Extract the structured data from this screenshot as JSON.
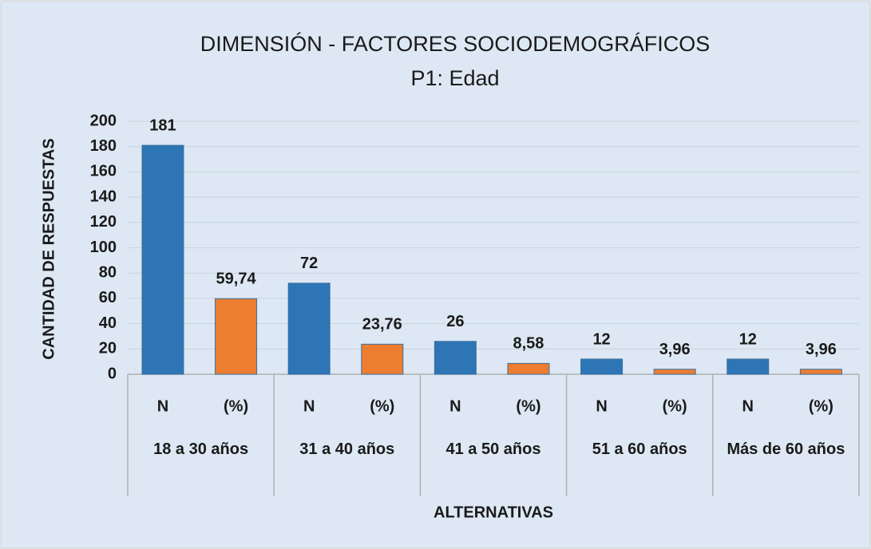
{
  "chart_data": {
    "type": "bar",
    "title": "DIMENSIÓN - FACTORES SOCIODEMOGRÁFICOS",
    "subtitle": "P1: Edad",
    "x_label": "ALTERNATIVAS",
    "y_label": "CANTIDAD DE RESPUESTAS",
    "categories": [
      "18 a 30 años",
      "31 a 40 años",
      "41 a 50 años",
      "51 a 60 años",
      "Más de 60 años"
    ],
    "series": [
      {
        "name": "N",
        "color": "#2e75b6",
        "values": [
          181,
          72,
          26,
          12,
          12
        ]
      },
      {
        "name": "(%)",
        "color": "#ed7d31",
        "values": [
          59.74,
          23.76,
          8.58,
          3.96,
          3.96
        ],
        "value_labels": [
          "59,74",
          "23,76",
          "8,58",
          "3,96",
          "3,96"
        ]
      }
    ],
    "ylim": [
      0,
      200
    ],
    "yticks": [
      0,
      20,
      40,
      60,
      80,
      100,
      120,
      140,
      160,
      180,
      200
    ],
    "grid": true
  }
}
